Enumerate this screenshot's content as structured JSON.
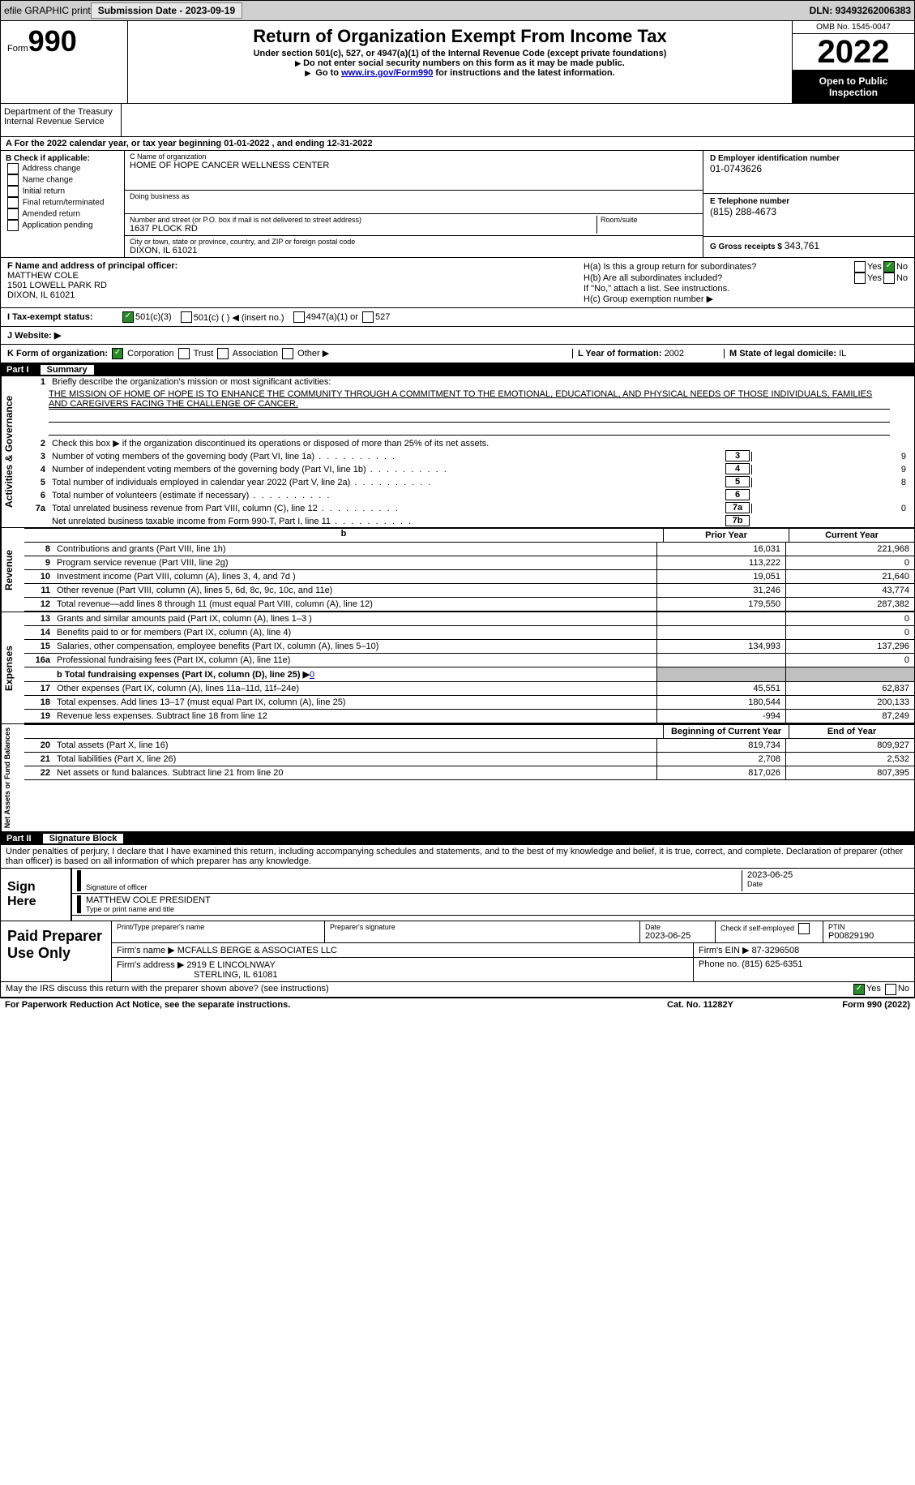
{
  "topbar": {
    "efile": "efile GRAPHIC print",
    "subdate_label": "Submission Date - ",
    "subdate": "2023-09-19",
    "dln_label": "DLN: ",
    "dln": "93493262006383"
  },
  "header": {
    "form_label": "Form",
    "form_num": "990",
    "title": "Return of Organization Exempt From Income Tax",
    "subtitle": "Under section 501(c), 527, or 4947(a)(1) of the Internal Revenue Code (except private foundations)",
    "note1": "Do not enter social security numbers on this form as it may be made public.",
    "note2_pre": "Go to ",
    "note2_link": "www.irs.gov/Form990",
    "note2_post": " for instructions and the latest information.",
    "omb": "OMB No. 1545-0047",
    "year": "2022",
    "inspection": "Open to Public Inspection",
    "dept": "Department of the Treasury",
    "irs": "Internal Revenue Service"
  },
  "row_a": {
    "label": "A  For the 2022 calendar year, or tax year beginning ",
    "begin": "01-01-2022",
    "mid": "   , and ending ",
    "end": "12-31-2022"
  },
  "section_b": {
    "b_label": "B Check if applicable:",
    "addr_change": "Address change",
    "name_change": "Name change",
    "init_return": "Initial return",
    "final_return": "Final return/terminated",
    "amended": "Amended return",
    "app_pending": "Application pending",
    "c_name_lbl": "C Name of organization",
    "c_name": "HOME OF HOPE CANCER WELLNESS CENTER",
    "dba_lbl": "Doing business as",
    "street_lbl": "Number and street (or P.O. box if mail is not delivered to street address)",
    "room_lbl": "Room/suite",
    "street": "1637 PLOCK RD",
    "city_lbl": "City or town, state or province, country, and ZIP or foreign postal code",
    "city": "DIXON, IL  61021",
    "d_ein_lbl": "D Employer identification number",
    "d_ein": "01-0743626",
    "e_tel_lbl": "E Telephone number",
    "e_tel": "(815) 288-4673",
    "g_lbl": "G Gross receipts $ ",
    "g_val": "343,761"
  },
  "section_fh": {
    "f_lbl": "F  Name and address of principal officer:",
    "f_name": "MATTHEW COLE",
    "f_street": "1501 LOWELL PARK RD",
    "f_city": "DIXON, IL  61021",
    "ha_lbl": "H(a)  Is this a group return for subordinates?",
    "hb_lbl": "H(b)  Are all subordinates included?",
    "hb_note": "If \"No,\" attach a list. See instructions.",
    "hc_lbl": "H(c)  Group exemption number ▶",
    "yes": "Yes",
    "no": "No"
  },
  "status_row": {
    "i_lbl": "I     Tax-exempt status:",
    "o501c3": "501(c)(3)",
    "o501c": "501(c) (     ) ◀ (insert no.)",
    "o4947": "4947(a)(1) or",
    "o527": "527"
  },
  "website": {
    "j_lbl": "J    Website: ▶"
  },
  "k_row": {
    "k_lbl": "K Form of organization:",
    "corp": "Corporation",
    "trust": "Trust",
    "assoc": "Association",
    "other": "Other ▶",
    "l_lbl": "L Year of formation: ",
    "l_val": "2002",
    "m_lbl": "M State of legal domicile: ",
    "m_val": "IL"
  },
  "part1": {
    "label": "Part I",
    "name": "Summary",
    "vlabel_ag": "Activities & Governance",
    "vlabel_rev": "Revenue",
    "vlabel_exp": "Expenses",
    "vlabel_na": "Net Assets or Fund Balances",
    "l1_lbl": "Briefly describe the organization's mission or most significant activities:",
    "l1_val": "THE MISSION OF HOME OF HOPE IS TO ENHANCE THE COMMUNITY THROUGH A COMMITMENT TO THE EMOTIONAL, EDUCATIONAL, AND PHYSICAL NEEDS OF THOSE INDIVIDUALS, FAMILIES AND CAREGIVERS FACING THE CHALLENGE OF CANCER.",
    "l2": "Check this box ▶        if the organization discontinued its operations or disposed of more than 25% of its net assets.",
    "l3": "Number of voting members of the governing body (Part VI, line 1a)",
    "l3v": "9",
    "l4": "Number of independent voting members of the governing body (Part VI, line 1b)",
    "l4v": "9",
    "l5": "Total number of individuals employed in calendar year 2022 (Part V, line 2a)",
    "l5v": "8",
    "l6": "Total number of volunteers (estimate if necessary)",
    "l6v": "",
    "l7a": "Total unrelated business revenue from Part VIII, column (C), line 12",
    "l7av": "0",
    "l7b": "Net unrelated business taxable income from Form 990-T, Part I, line 11",
    "l7bv": "",
    "prior_year": "Prior Year",
    "current_year": "Current Year",
    "rows": [
      {
        "n": "8",
        "d": "Contributions and grants (Part VIII, line 1h)",
        "p": "16,031",
        "c": "221,968"
      },
      {
        "n": "9",
        "d": "Program service revenue (Part VIII, line 2g)",
        "p": "113,222",
        "c": "0"
      },
      {
        "n": "10",
        "d": "Investment income (Part VIII, column (A), lines 3, 4, and 7d )",
        "p": "19,051",
        "c": "21,640"
      },
      {
        "n": "11",
        "d": "Other revenue (Part VIII, column (A), lines 5, 6d, 8c, 9c, 10c, and 11e)",
        "p": "31,246",
        "c": "43,774"
      },
      {
        "n": "12",
        "d": "Total revenue—add lines 8 through 11 (must equal Part VIII, column (A), line 12)",
        "p": "179,550",
        "c": "287,382"
      }
    ],
    "exp_rows": [
      {
        "n": "13",
        "d": "Grants and similar amounts paid (Part IX, column (A), lines 1–3 )",
        "p": "",
        "c": "0"
      },
      {
        "n": "14",
        "d": "Benefits paid to or for members (Part IX, column (A), line 4)",
        "p": "",
        "c": "0"
      },
      {
        "n": "15",
        "d": "Salaries, other compensation, employee benefits (Part IX, column (A), lines 5–10)",
        "p": "134,993",
        "c": "137,296"
      },
      {
        "n": "16a",
        "d": "Professional fundraising fees (Part IX, column (A), line 11e)",
        "p": "",
        "c": "0"
      }
    ],
    "l16b_lbl": "b  Total fundraising expenses (Part IX, column (D), line 25) ▶",
    "l16b_val": "0",
    "exp_rows2": [
      {
        "n": "17",
        "d": "Other expenses (Part IX, column (A), lines 11a–11d, 11f–24e)",
        "p": "45,551",
        "c": "62,837"
      },
      {
        "n": "18",
        "d": "Total expenses. Add lines 13–17 (must equal Part IX, column (A), line 25)",
        "p": "180,544",
        "c": "200,133"
      },
      {
        "n": "19",
        "d": "Revenue less expenses. Subtract line 18 from line 12",
        "p": "-994",
        "c": "87,249"
      }
    ],
    "begin_year": "Beginning of Current Year",
    "end_year": "End of Year",
    "na_rows": [
      {
        "n": "20",
        "d": "Total assets (Part X, line 16)",
        "p": "819,734",
        "c": "809,927"
      },
      {
        "n": "21",
        "d": "Total liabilities (Part X, line 26)",
        "p": "2,708",
        "c": "2,532"
      },
      {
        "n": "22",
        "d": "Net assets or fund balances. Subtract line 21 from line 20",
        "p": "817,026",
        "c": "807,395"
      }
    ]
  },
  "part2": {
    "label": "Part II",
    "name": "Signature Block",
    "penalty": "Under penalties of perjury, I declare that I have examined this return, including accompanying schedules and statements, and to the best of my knowledge and belief, it is true, correct, and complete. Declaration of preparer (other than officer) is based on all information of which preparer has any knowledge.",
    "sign_here": "Sign Here",
    "sig_officer": "Signature of officer",
    "sig_date": "2023-06-25",
    "date_lbl": "Date",
    "officer_name": "MATTHEW COLE  PRESIDENT",
    "type_name": "Type or print name and title",
    "paid": "Paid Preparer Use Only",
    "prep_name_lbl": "Print/Type preparer's name",
    "prep_sig_lbl": "Preparer's signature",
    "prep_date_lbl": "Date",
    "prep_date": "2023-06-25",
    "check_self": "Check          if self-employed",
    "ptin_lbl": "PTIN",
    "ptin": "P00829190",
    "firm_name_lbl": "Firm's name     ▶",
    "firm_name": "MCFALLS BERGE & ASSOCIATES LLC",
    "firm_ein_lbl": "Firm's EIN ▶ ",
    "firm_ein": "87-3296508",
    "firm_addr_lbl": "Firm's address ▶",
    "firm_addr1": "2919 E LINCOLNWAY",
    "firm_addr2": "STERLING, IL  61081",
    "phone_lbl": "Phone no. ",
    "phone": "(815) 625-6351",
    "may_discuss": "May the IRS discuss this return with the preparer shown above? (see instructions)",
    "yes": "Yes",
    "no": "No"
  },
  "footer": {
    "paperwork": "For Paperwork Reduction Act Notice, see the separate instructions.",
    "cat": "Cat. No. 11282Y",
    "formyr": "Form 990 (2022)"
  }
}
